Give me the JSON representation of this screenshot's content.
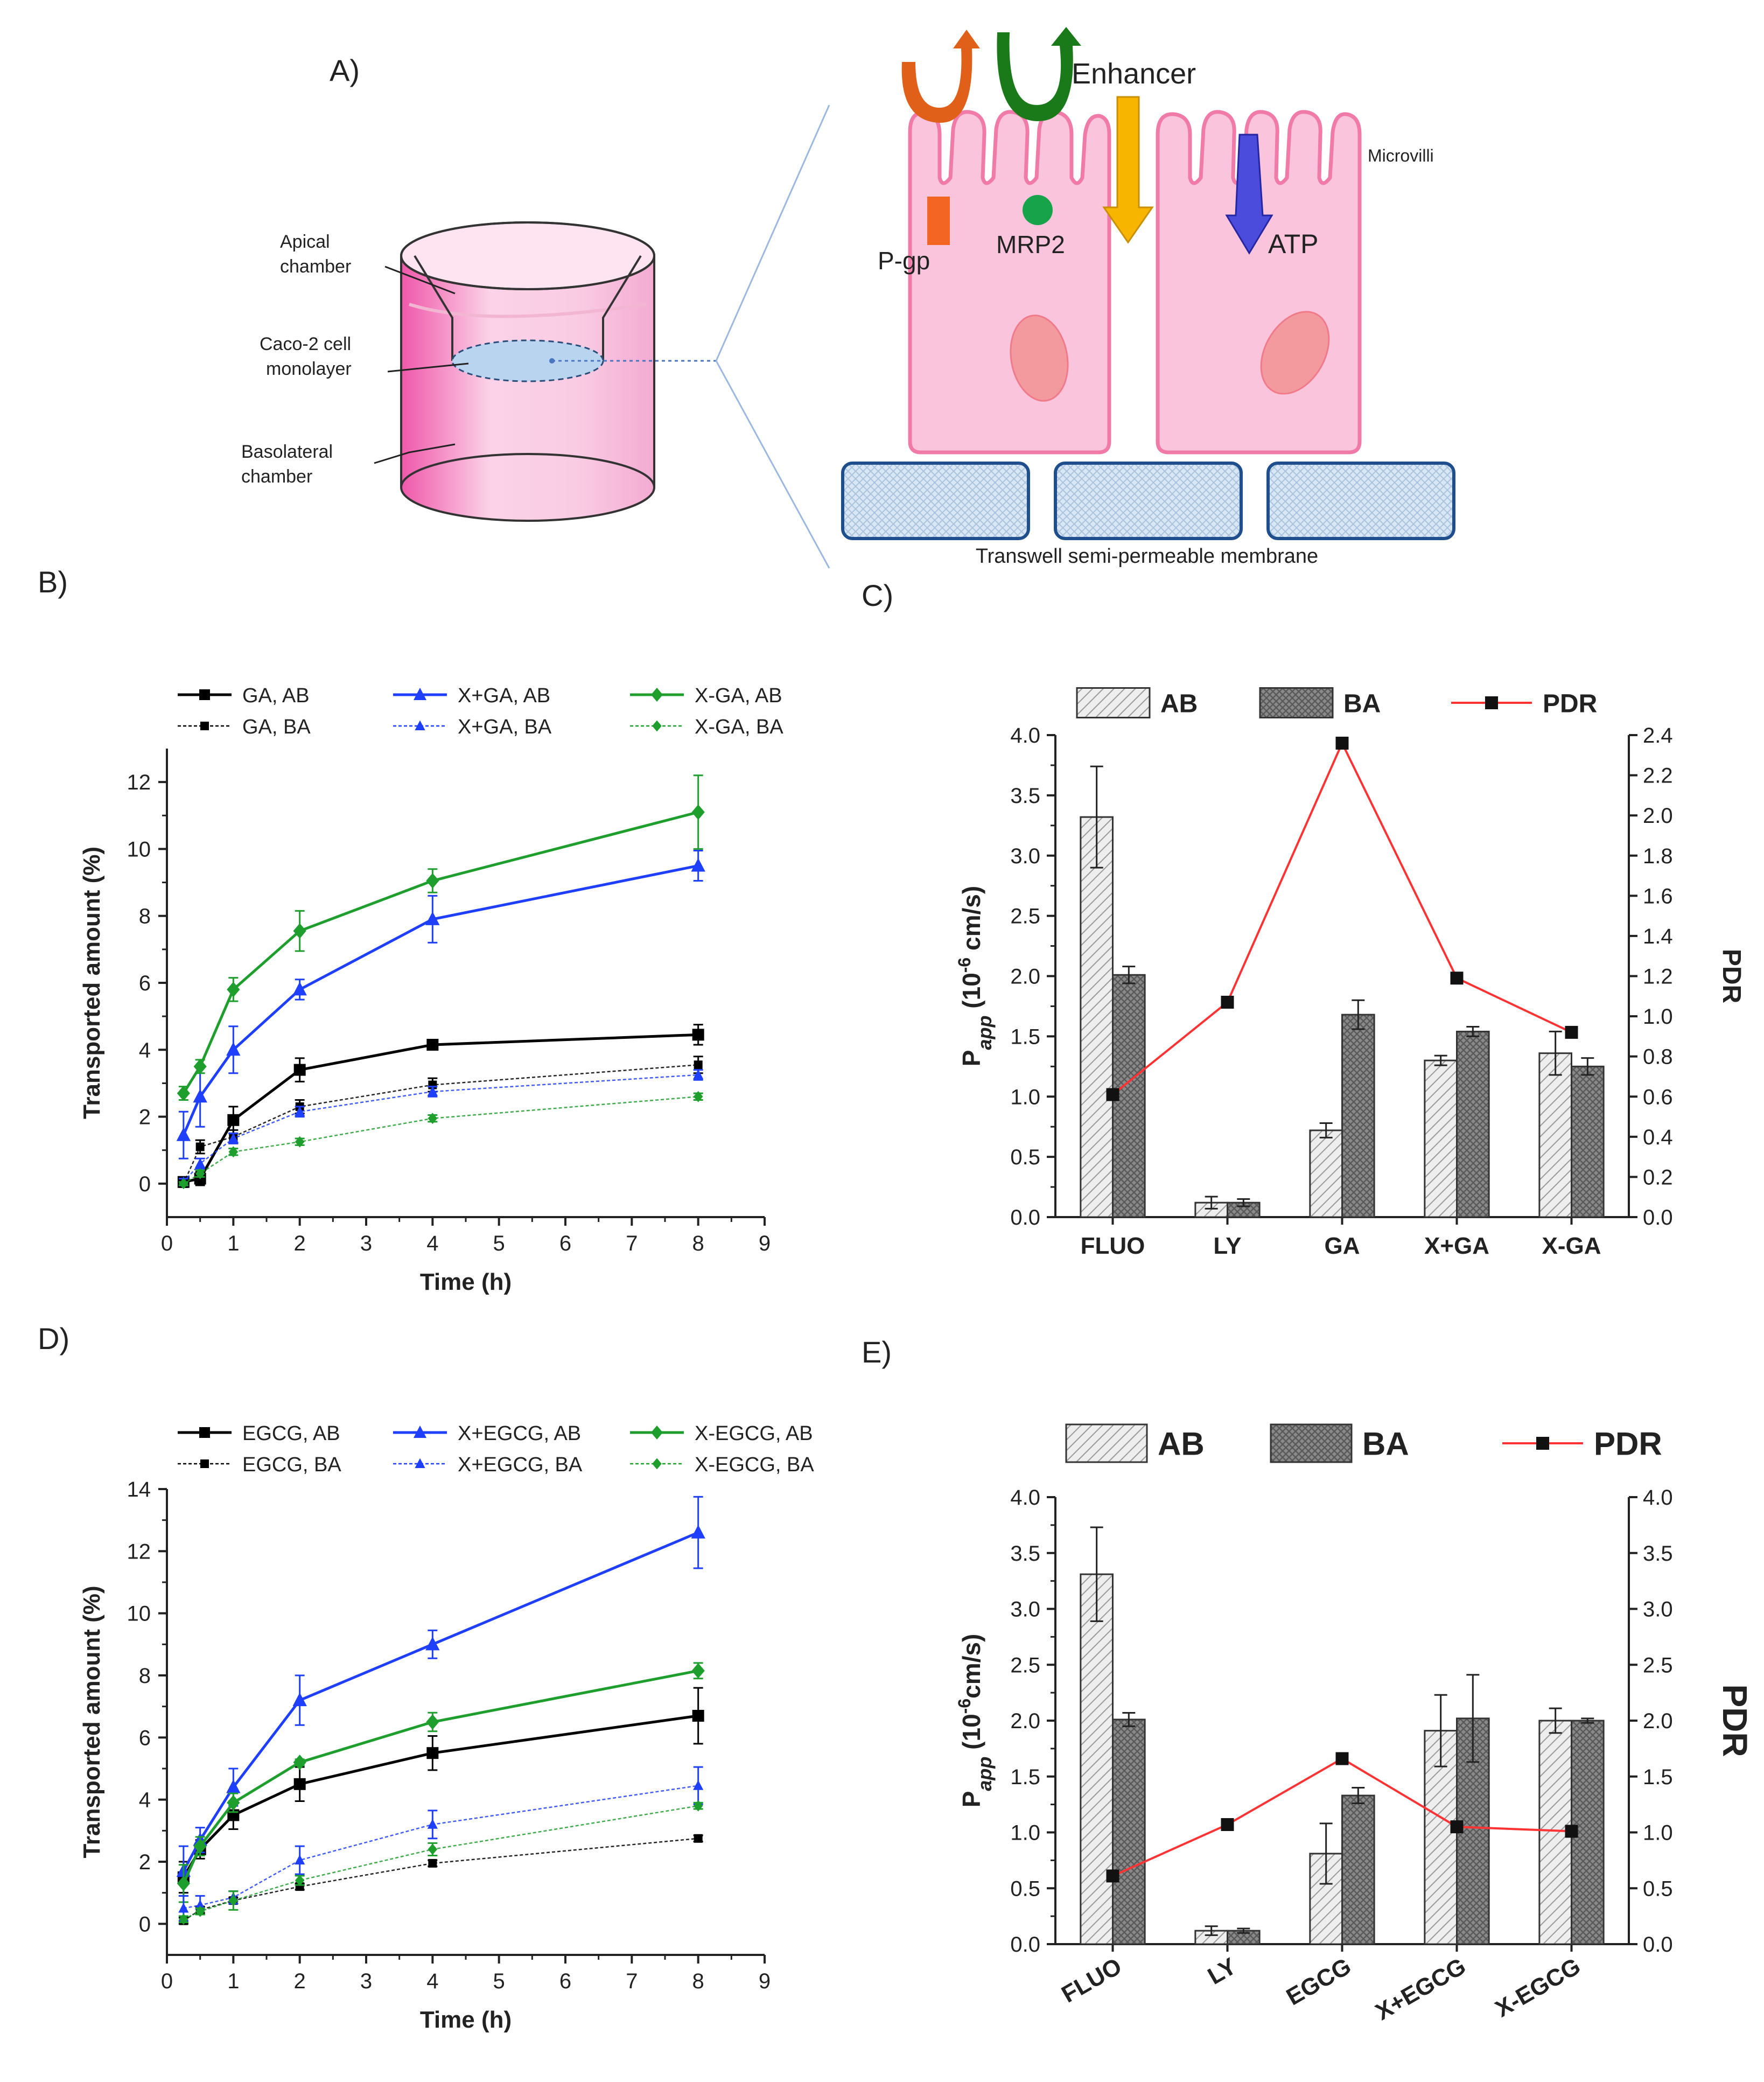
{
  "panelA": {
    "label": "A)",
    "apical": [
      "Apical",
      "chamber"
    ],
    "caco": [
      "Caco-2 cell",
      "monolayer"
    ],
    "basolateral": [
      "Basolateral",
      "chamber"
    ],
    "enhancer": "Enhancer",
    "microvilli": "Microvilli",
    "pgp": "P-gp",
    "mrp2": "MRP2",
    "atp": "ATP",
    "membrane": "Transwell semi-permeable membrane",
    "colors": {
      "pgp": "#f26522",
      "mrp2": "#16a34a",
      "enhancer": "#f7b500",
      "atp": "#4b4bdc",
      "cell": "#f9c4dc",
      "cellStroke": "#f07aa8"
    }
  },
  "chart_data": [
    {
      "id": "B",
      "label": "B)",
      "type": "line",
      "xlabel": "Time (h)",
      "ylabel": "Transported amount (%)",
      "xlim": [
        0,
        9
      ],
      "ylim": [
        -1,
        13
      ],
      "xticks": [
        0,
        1,
        2,
        3,
        4,
        5,
        6,
        7,
        8,
        9
      ],
      "yticks": [
        0,
        2,
        4,
        6,
        8,
        10,
        12
      ],
      "x": [
        0.25,
        0.5,
        1,
        2,
        4,
        8
      ],
      "series": [
        {
          "name": "GA, AB",
          "color": "#000000",
          "marker": "square",
          "dashed": false,
          "values": [
            0.05,
            0.15,
            1.9,
            3.4,
            4.15,
            4.45
          ],
          "err": [
            0.1,
            0.2,
            0.4,
            0.35,
            0.1,
            0.3
          ]
        },
        {
          "name": "X+GA, AB",
          "color": "#1f3fff",
          "marker": "triangle",
          "dashed": false,
          "values": [
            1.45,
            2.6,
            4.0,
            5.8,
            7.9,
            9.5
          ],
          "err": [
            0.7,
            0.9,
            0.7,
            0.3,
            0.7,
            0.45
          ]
        },
        {
          "name": "X-GA, AB",
          "color": "#1e9e2c",
          "marker": "diamond",
          "dashed": false,
          "values": [
            2.7,
            3.5,
            5.8,
            7.55,
            9.05,
            11.1
          ],
          "err": [
            0.2,
            0.2,
            0.35,
            0.6,
            0.35,
            1.1
          ]
        },
        {
          "name": "GA, BA",
          "color": "#000000",
          "marker": "square",
          "dashed": true,
          "values": [
            0.0,
            1.1,
            1.4,
            2.3,
            2.95,
            3.55
          ],
          "err": [
            0.1,
            0.2,
            0.2,
            0.2,
            0.2,
            0.25
          ]
        },
        {
          "name": "X+GA, BA",
          "color": "#1f3fff",
          "marker": "triangle",
          "dashed": true,
          "values": [
            0.05,
            0.6,
            1.35,
            2.15,
            2.75,
            3.25
          ],
          "err": [
            0.1,
            0.15,
            0.15,
            0.15,
            0.15,
            0.15
          ]
        },
        {
          "name": "X-GA, BA",
          "color": "#1e9e2c",
          "marker": "diamond",
          "dashed": true,
          "values": [
            0.0,
            0.3,
            0.95,
            1.25,
            1.95,
            2.6
          ],
          "err": [
            0.05,
            0.1,
            0.1,
            0.1,
            0.1,
            0.1
          ]
        }
      ]
    },
    {
      "id": "C",
      "label": "C)",
      "type": "bar",
      "ylabel": "P",
      "ylabel_sub": "app",
      "ylabel_units": " (10",
      "ylabel_exp": "-6",
      "ylabel_tail": " cm/s)",
      "y2label": "PDR",
      "categories": [
        "FLUO",
        "LY",
        "GA",
        "X+GA",
        "X-GA"
      ],
      "ylim": [
        0,
        4.0
      ],
      "yticks": [
        0,
        0.5,
        1.0,
        1.5,
        2.0,
        2.5,
        3.0,
        3.5,
        4.0
      ],
      "y2lim": [
        0,
        2.4
      ],
      "y2ticks": [
        0,
        0.2,
        0.4,
        0.6,
        0.8,
        1.0,
        1.2,
        1.4,
        1.6,
        1.8,
        2.0,
        2.2,
        2.4
      ],
      "series": [
        {
          "name": "AB",
          "values": [
            3.32,
            0.12,
            0.72,
            1.3,
            1.36
          ],
          "err": [
            0.42,
            0.05,
            0.06,
            0.04,
            0.18
          ]
        },
        {
          "name": "BA",
          "values": [
            2.01,
            0.12,
            1.68,
            1.54,
            1.25
          ],
          "err": [
            0.07,
            0.03,
            0.12,
            0.04,
            0.07
          ]
        }
      ],
      "pdr": {
        "name": "PDR",
        "values": [
          0.61,
          1.07,
          2.36,
          1.19,
          0.92
        ]
      }
    },
    {
      "id": "D",
      "label": "D)",
      "type": "line",
      "xlabel": "Time (h)",
      "ylabel": "Transported amount (%)",
      "xlim": [
        0,
        9
      ],
      "ylim": [
        -1,
        14
      ],
      "xticks": [
        0,
        1,
        2,
        3,
        4,
        5,
        6,
        7,
        8,
        9
      ],
      "yticks": [
        0,
        2,
        4,
        6,
        8,
        10,
        12,
        14
      ],
      "x": [
        0.25,
        0.5,
        1,
        2,
        4,
        8
      ],
      "series": [
        {
          "name": "EGCG, AB",
          "color": "#000000",
          "marker": "square",
          "dashed": false,
          "values": [
            1.5,
            2.4,
            3.5,
            4.5,
            5.5,
            6.7
          ],
          "err": [
            0.5,
            0.3,
            0.45,
            0.55,
            0.55,
            0.9
          ]
        },
        {
          "name": "X+EGCG, AB",
          "color": "#1f3fff",
          "marker": "triangle",
          "dashed": false,
          "values": [
            1.7,
            2.7,
            4.4,
            7.2,
            9.0,
            12.6
          ],
          "err": [
            0.8,
            0.4,
            0.6,
            0.8,
            0.45,
            1.15
          ]
        },
        {
          "name": "X-EGCG, AB",
          "color": "#1e9e2c",
          "marker": "diamond",
          "dashed": false,
          "values": [
            1.3,
            2.5,
            3.9,
            5.2,
            6.5,
            8.15
          ],
          "err": [
            0.6,
            0.3,
            0.3,
            0.1,
            0.3,
            0.25
          ]
        },
        {
          "name": "EGCG, BA",
          "color": "#000000",
          "marker": "square",
          "dashed": true,
          "values": [
            0.1,
            0.45,
            0.75,
            1.2,
            1.95,
            2.75
          ],
          "err": [
            0.1,
            0.1,
            0.1,
            0.1,
            0.1,
            0.1
          ]
        },
        {
          "name": "X+EGCG, BA",
          "color": "#1f3fff",
          "marker": "triangle",
          "dashed": true,
          "values": [
            0.5,
            0.6,
            0.85,
            2.05,
            3.2,
            4.45
          ],
          "err": [
            0.4,
            0.3,
            0.2,
            0.45,
            0.45,
            0.6
          ]
        },
        {
          "name": "X-EGCG, BA",
          "color": "#1e9e2c",
          "marker": "diamond",
          "dashed": true,
          "values": [
            0.15,
            0.4,
            0.75,
            1.4,
            2.4,
            3.8
          ],
          "err": [
            0.1,
            0.1,
            0.3,
            0.15,
            0.2,
            0.1
          ]
        }
      ]
    },
    {
      "id": "E",
      "label": "E)",
      "type": "bar",
      "ylabel": "P",
      "ylabel_sub": "app",
      "ylabel_units": " (10",
      "ylabel_exp": "-6",
      "ylabel_tail": "cm/s)",
      "y2label": "PDR",
      "categories": [
        "FLUO",
        "LY",
        "EGCG",
        "X+EGCG",
        "X-EGCG"
      ],
      "ylim": [
        0,
        4.0
      ],
      "yticks": [
        0,
        0.5,
        1.0,
        1.5,
        2.0,
        2.5,
        3.0,
        3.5,
        4.0
      ],
      "y2lim": [
        0,
        4.0
      ],
      "y2ticks": [
        0,
        0.5,
        1.0,
        1.5,
        2.0,
        2.5,
        3.0,
        3.5,
        4.0
      ],
      "series": [
        {
          "name": "AB",
          "values": [
            3.31,
            0.12,
            0.81,
            1.91,
            2.0
          ],
          "err": [
            0.42,
            0.04,
            0.27,
            0.32,
            0.11
          ]
        },
        {
          "name": "BA",
          "values": [
            2.01,
            0.12,
            1.33,
            2.02,
            2.0
          ],
          "err": [
            0.06,
            0.02,
            0.07,
            0.39,
            0.02
          ]
        }
      ],
      "pdr": {
        "name": "PDR",
        "values": [
          0.61,
          1.07,
          1.66,
          1.05,
          1.01
        ]
      }
    }
  ]
}
